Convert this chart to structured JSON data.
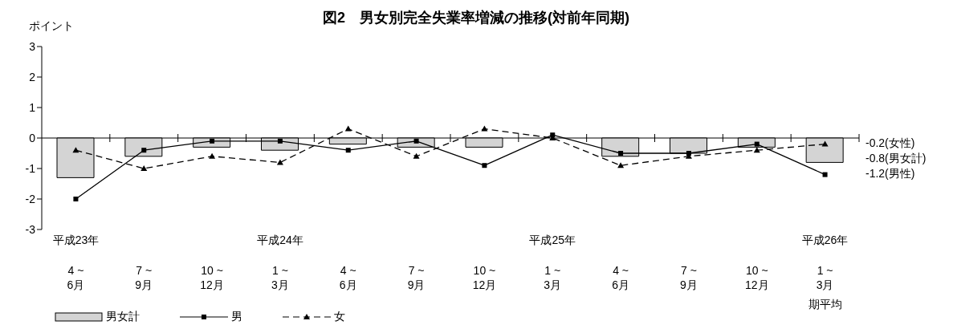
{
  "chart_data": {
    "type": "bar",
    "title": "図2　男女別完全失業率増減の推移(対前年同期)",
    "ylabel": "ポイント",
    "categories": [
      "平成23年\n4 ~6月",
      "7 ~9月",
      "10 ~12月",
      "平成24年\n1 ~3月",
      "4 ~6月",
      "7 ~9月",
      "10 ~12月",
      "平成25年\n1 ~3月",
      "4 ~6月",
      "7 ~9月",
      "10 ~12月",
      "平成26年\n1 ~3月"
    ],
    "series": [
      {
        "name": "男女計",
        "color": "#d4d4d4",
        "values": [
          -1.3,
          -0.6,
          -0.3,
          -0.4,
          -0.2,
          -0.3,
          -0.3,
          0.0,
          -0.6,
          -0.5,
          -0.3,
          -0.8
        ]
      },
      {
        "name": "男",
        "type": "line",
        "color": "#000000",
        "marker": "square",
        "line_style": "solid",
        "values": [
          -2.0,
          -0.4,
          -0.1,
          -0.1,
          -0.4,
          -0.1,
          -0.9,
          0.1,
          -0.5,
          -0.5,
          -0.2,
          -1.2
        ]
      },
      {
        "name": "女",
        "type": "line",
        "color": "#000000",
        "marker": "triangle",
        "line_style": "dashed",
        "values": [
          -0.4,
          -1.0,
          -0.6,
          -0.8,
          0.3,
          -0.6,
          0.3,
          0.0,
          -0.9,
          -0.6,
          -0.4,
          -0.2
        ]
      }
    ],
    "ylim": [
      -3,
      3
    ],
    "yticks": [
      -3,
      -2,
      -1,
      0,
      1,
      2,
      3
    ],
    "legend": "bottom left",
    "annotations": [
      "-0.2(女性)",
      "-0.8(男女計)",
      "-1.2(男性)",
      "期平均"
    ]
  }
}
